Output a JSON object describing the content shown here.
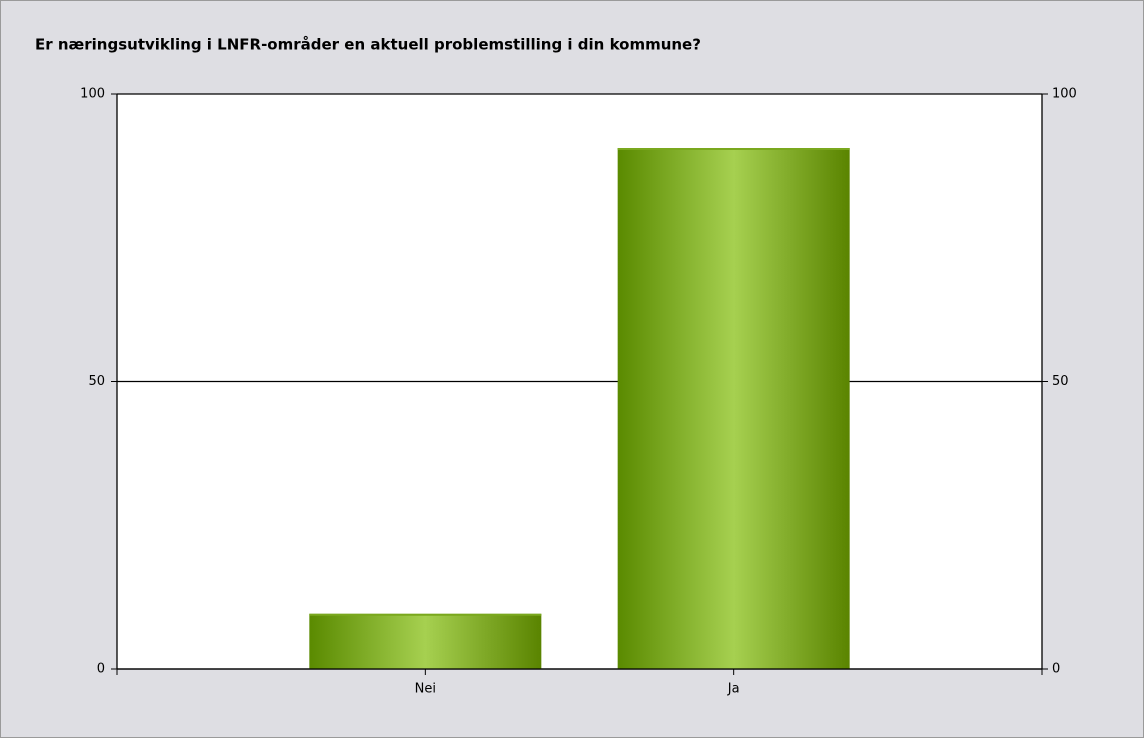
{
  "chart_data": {
    "type": "bar",
    "title": "Er næringsutvikling i LNFR-områder en aktuell problemstilling i din kommune?",
    "categories": [
      "Nei",
      "Ja"
    ],
    "values": [
      9.6,
      90.6
    ],
    "color": "#7aa81e",
    "ylim": [
      0,
      100
    ],
    "yticks": [
      0,
      50,
      100
    ],
    "y2lim": [
      0,
      100
    ],
    "y2ticks": [
      0,
      50,
      100
    ],
    "grid": true
  }
}
